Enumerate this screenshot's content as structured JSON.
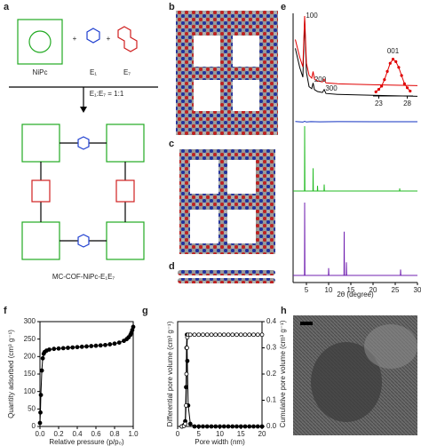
{
  "panel_labels": [
    "a",
    "b",
    "c",
    "d",
    "e",
    "f",
    "g",
    "h"
  ],
  "scheme": {
    "monomers": [
      "NiPc",
      "E₁",
      "E₇"
    ],
    "ratio": "E₁:E₇ = 1:1",
    "product": "MC-COF-NiPc-E₁E₇"
  },
  "chart_data": [
    {
      "type": "line",
      "xlabel": "2θ (degree)",
      "xlim": [
        2,
        30
      ],
      "xticks": [
        5,
        10,
        15,
        20,
        25,
        30
      ],
      "ylim": [
        0,
        100
      ],
      "annotations": [
        {
          "text": "100",
          "x": 4.6
        },
        {
          "text": "200",
          "x": 6.5
        },
        {
          "text": "300",
          "x": 9
        }
      ],
      "series": [
        {
          "color": "#000000",
          "x": [
            2.5,
            3.5,
            4.2,
            4.6,
            5.0,
            5.6,
            6.2,
            6.5,
            6.8,
            7.5,
            8.6,
            9,
            9.4,
            12,
            20,
            30
          ],
          "values": [
            70,
            50,
            40,
            100,
            45,
            30,
            28,
            34,
            27,
            25,
            24,
            27,
            23,
            22,
            21,
            20
          ]
        },
        {
          "color": "#e00000",
          "x": [
            2.5,
            3.5,
            4.2,
            4.6,
            5.0,
            5.6,
            6.2,
            6.5,
            6.8,
            7.5,
            8.6,
            9,
            9.4,
            12,
            20,
            30
          ],
          "values": [
            75,
            56,
            46,
            100,
            50,
            37,
            34,
            41,
            33,
            31,
            30,
            33,
            29,
            28,
            27,
            26
          ]
        },
        {
          "color": "#1030c0",
          "x": [
            2.5,
            4.2,
            4.6,
            5.0,
            6,
            8,
            12,
            20,
            30
          ],
          "values": [
            2,
            -4,
            5,
            -3,
            1,
            -1,
            0.5,
            0,
            0
          ]
        },
        {
          "color": "#22bb22",
          "x": [
            2,
            4.55,
            4.6,
            4.65,
            6.45,
            6.5,
            6.55,
            7.45,
            7.5,
            7.55,
            8.95,
            9,
            9.05,
            25.95,
            26,
            26.05,
            30
          ],
          "values": [
            0,
            0,
            100,
            0,
            0,
            35,
            0,
            0,
            8,
            0,
            0,
            10,
            0,
            0,
            4,
            0,
            0
          ]
        },
        {
          "color": "#7020b0",
          "x": [
            2,
            4.55,
            4.6,
            4.65,
            9.95,
            10,
            10.05,
            13.45,
            13.5,
            13.55,
            13.95,
            14,
            14.05,
            26.15,
            26.2,
            26.25,
            30
          ],
          "values": [
            0,
            0,
            100,
            0,
            0,
            10,
            0,
            0,
            60,
            0,
            0,
            18,
            0,
            0,
            8,
            0,
            0
          ]
        }
      ]
    },
    {
      "type": "line",
      "xlim": [
        22,
        29
      ],
      "xticks": [
        23,
        28
      ],
      "ylim": [
        0,
        50
      ],
      "annotations": [
        {
          "text": "001",
          "x": 25.5
        }
      ],
      "series": [
        {
          "color": "#e00000",
          "marker": "filled",
          "x": [
            22.5,
            23,
            23.5,
            24,
            24.5,
            25,
            25.5,
            26,
            26.5,
            27,
            27.5,
            28,
            28.5
          ],
          "values": [
            5,
            8,
            12,
            20,
            30,
            40,
            45,
            42,
            35,
            25,
            15,
            10,
            6
          ]
        }
      ]
    },
    {
      "type": "line",
      "xlabel": "Relative pressure (p/p₀)",
      "ylabel": "Quantity adsorbed (cm³ g⁻¹)",
      "xlim": [
        0,
        1
      ],
      "xticks": [
        {
          "value": 0,
          "label": "0.0"
        },
        0.2,
        0.4,
        0.6,
        0.8,
        {
          "value": 1,
          "label": "1.0"
        }
      ],
      "ylim": [
        0,
        300
      ],
      "yticks": [
        0,
        50,
        100,
        150,
        200,
        250,
        300
      ],
      "series": [
        {
          "color": "#000000",
          "marker": "filled",
          "x": [
            0,
            0.005,
            0.01,
            0.02,
            0.03,
            0.04,
            0.05,
            0.07,
            0.1,
            0.15,
            0.2,
            0.25,
            0.3,
            0.35,
            0.4,
            0.45,
            0.5,
            0.55,
            0.6,
            0.65,
            0.7,
            0.75,
            0.8,
            0.85,
            0.9,
            0.93,
            0.95,
            0.97,
            0.98,
            0.99,
            1.0
          ],
          "values": [
            10,
            40,
            90,
            160,
            195,
            208,
            213,
            217,
            220,
            222,
            223,
            224,
            225,
            226,
            227,
            228,
            229,
            230,
            231,
            232,
            233,
            235,
            237,
            240,
            245,
            250,
            255,
            262,
            268,
            276,
            285
          ]
        }
      ]
    },
    {
      "type": "line",
      "xlabel": "Pore width (nm)",
      "ylabel": "Differential pore volume (cm³ g⁻¹)",
      "y2label": "Cumulative pore volume (cm³ g⁻¹)",
      "xlim": [
        0,
        20
      ],
      "xticks": [
        0,
        5,
        10,
        15,
        20
      ],
      "ylim": [
        0,
        0.4
      ],
      "y2lim": [
        0,
        0.4
      ],
      "y2ticks": [
        {
          "value": 0,
          "label": "0.0"
        },
        0.1,
        0.2,
        0.3,
        0.4
      ],
      "series": [
        {
          "color": "#000000",
          "marker": "filled",
          "x": [
            1,
            1.5,
            1.8,
            2,
            2.1,
            2.2,
            2.3,
            2.5,
            3,
            4,
            5,
            6,
            7,
            8,
            9,
            10,
            11,
            12,
            13,
            14,
            15,
            16,
            17,
            18,
            19,
            20
          ],
          "values": [
            0,
            0.005,
            0.02,
            0.15,
            0.3,
            0.35,
            0.25,
            0.08,
            0.01,
            0,
            0,
            0,
            0,
            0,
            0,
            0,
            0,
            0,
            0,
            0,
            0,
            0,
            0,
            0,
            0,
            0
          ]
        },
        {
          "color": "#000000",
          "marker": "open",
          "axis": "y2",
          "x": [
            1,
            1.5,
            1.8,
            2,
            2.1,
            2.2,
            2.3,
            2.5,
            3,
            4,
            5,
            6,
            7,
            8,
            9,
            10,
            11,
            12,
            13,
            14,
            15,
            16,
            17,
            18,
            19,
            20
          ],
          "values": [
            0,
            0.002,
            0.01,
            0.08,
            0.2,
            0.3,
            0.34,
            0.35,
            0.35,
            0.35,
            0.35,
            0.35,
            0.35,
            0.35,
            0.35,
            0.35,
            0.35,
            0.35,
            0.35,
            0.35,
            0.35,
            0.35,
            0.35,
            0.35,
            0.35,
            0.35
          ]
        }
      ]
    }
  ]
}
